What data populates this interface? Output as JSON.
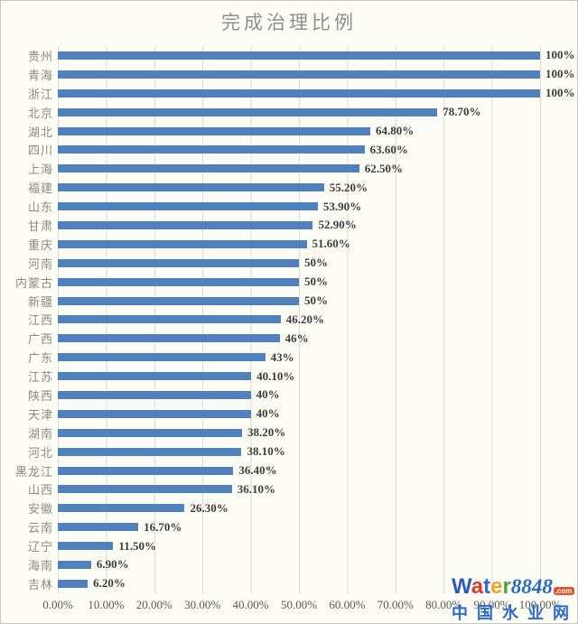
{
  "title": "完成治理比例",
  "chart_data": {
    "type": "bar",
    "orientation": "horizontal",
    "title": "完成治理比例",
    "xlabel": "",
    "ylabel": "",
    "xlim": [
      0,
      100
    ],
    "grid": "vertical-only",
    "bar_color": "#4f81bd",
    "x_ticks": [
      "0.00%",
      "10.00%",
      "20.00%",
      "30.00%",
      "40.00%",
      "50.00%",
      "60.00%",
      "70.00%",
      "80.00%",
      "90.00%",
      "100.00%"
    ],
    "categories": [
      "贵州",
      "青海",
      "浙江",
      "北京",
      "湖北",
      "四川",
      "上海",
      "福建",
      "山东",
      "甘肃",
      "重庆",
      "河南",
      "内蒙古",
      "新疆",
      "江西",
      "广西",
      "广东",
      "江苏",
      "陕西",
      "天津",
      "湖南",
      "河北",
      "黑龙江",
      "山西",
      "安徽",
      "云南",
      "辽宁",
      "海南",
      "吉林"
    ],
    "values": [
      100,
      100,
      100,
      78.7,
      64.8,
      63.6,
      62.5,
      55.2,
      53.9,
      52.9,
      51.6,
      50,
      50,
      50,
      46.2,
      46,
      43,
      40.1,
      40,
      40,
      38.2,
      38.1,
      36.4,
      36.1,
      26.3,
      16.7,
      11.5,
      6.9,
      6.2
    ],
    "value_labels": [
      "100%",
      "100%",
      "100%",
      "78.70%",
      "64.80%",
      "63.60%",
      "62.50%",
      "55.20%",
      "53.90%",
      "52.90%",
      "51.60%",
      "50%",
      "50%",
      "50%",
      "46.20%",
      "46%",
      "43%",
      "40.10%",
      "40%",
      "40%",
      "38.20%",
      "38.10%",
      "36.40%",
      "36.10%",
      "26.30%",
      "16.70%",
      "11.50%",
      "6.90%",
      "6.20%"
    ]
  },
  "watermark": {
    "brand_letters": [
      {
        "ch": "W",
        "color": "#2a5bc0"
      },
      {
        "ch": "a",
        "color": "#e03a2a"
      },
      {
        "ch": "t",
        "color": "#2f6fd2"
      },
      {
        "ch": "e",
        "color": "#f0a22a"
      },
      {
        "ch": "r",
        "color": "#4ba43b"
      }
    ],
    "brand_number": "8848",
    "brand_tld": ".com",
    "subtitle": "中国水业网"
  }
}
